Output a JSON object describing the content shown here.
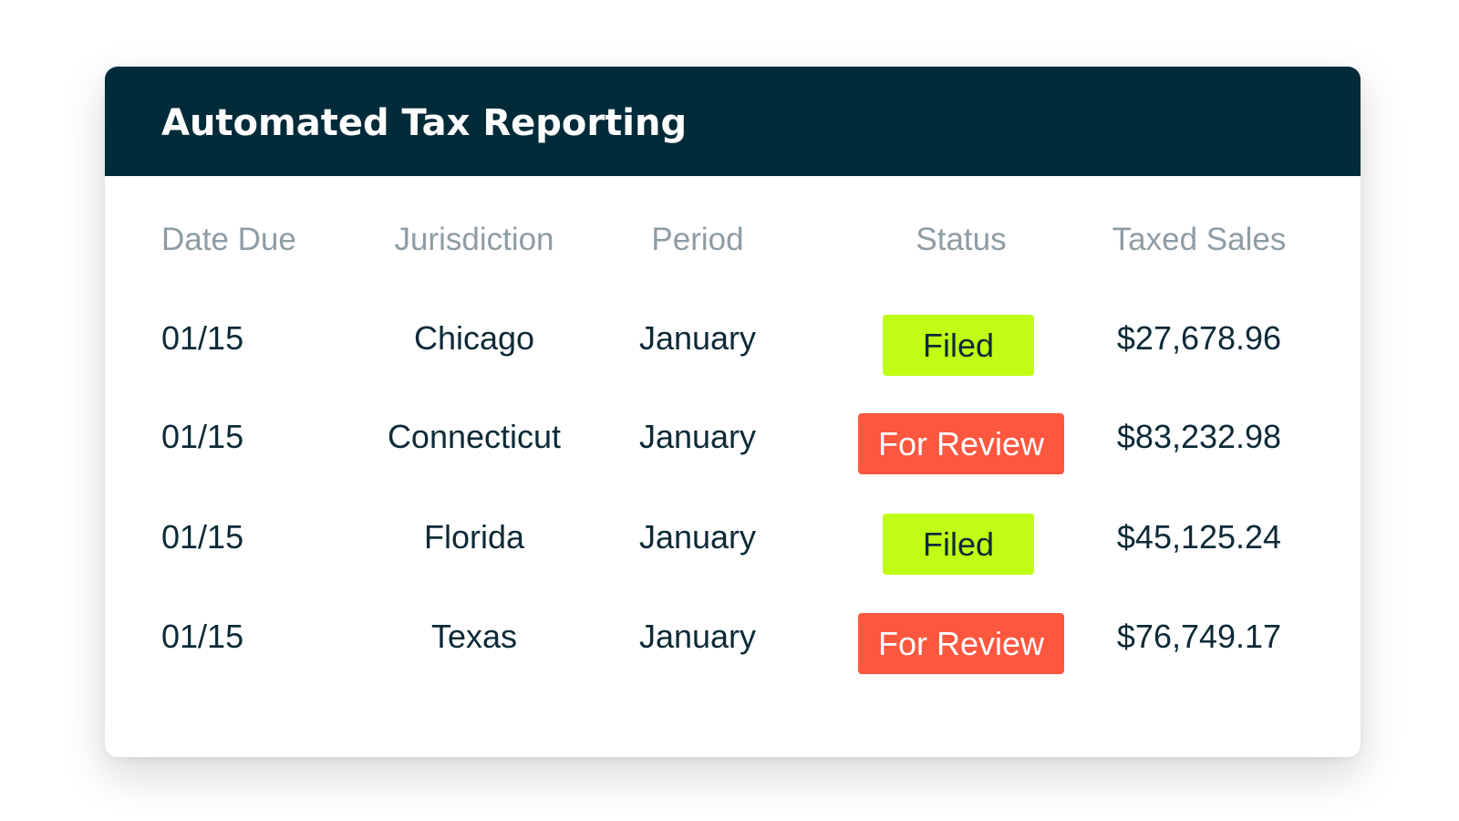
{
  "title": "Automated Tax Reporting",
  "colors": {
    "header_bg": "#022b3a",
    "filed": "#c1fd14",
    "review": "#fd5740"
  },
  "columns": [
    "Date Due",
    "Jurisdiction",
    "Period",
    "Status",
    "Taxed Sales"
  ],
  "rows": [
    {
      "date_due": "01/15",
      "jurisdiction": "Chicago",
      "period": "January",
      "status": "Filed",
      "taxed_sales": "$27,678.96"
    },
    {
      "date_due": "01/15",
      "jurisdiction": "Connecticut",
      "period": "January",
      "status": "For Review",
      "taxed_sales": "$83,232.98"
    },
    {
      "date_due": "01/15",
      "jurisdiction": "Florida",
      "period": "January",
      "status": "Filed",
      "taxed_sales": "$45,125.24"
    },
    {
      "date_due": "01/15",
      "jurisdiction": "Texas",
      "period": "January",
      "status": "For Review",
      "taxed_sales": "$76,749.17"
    }
  ]
}
